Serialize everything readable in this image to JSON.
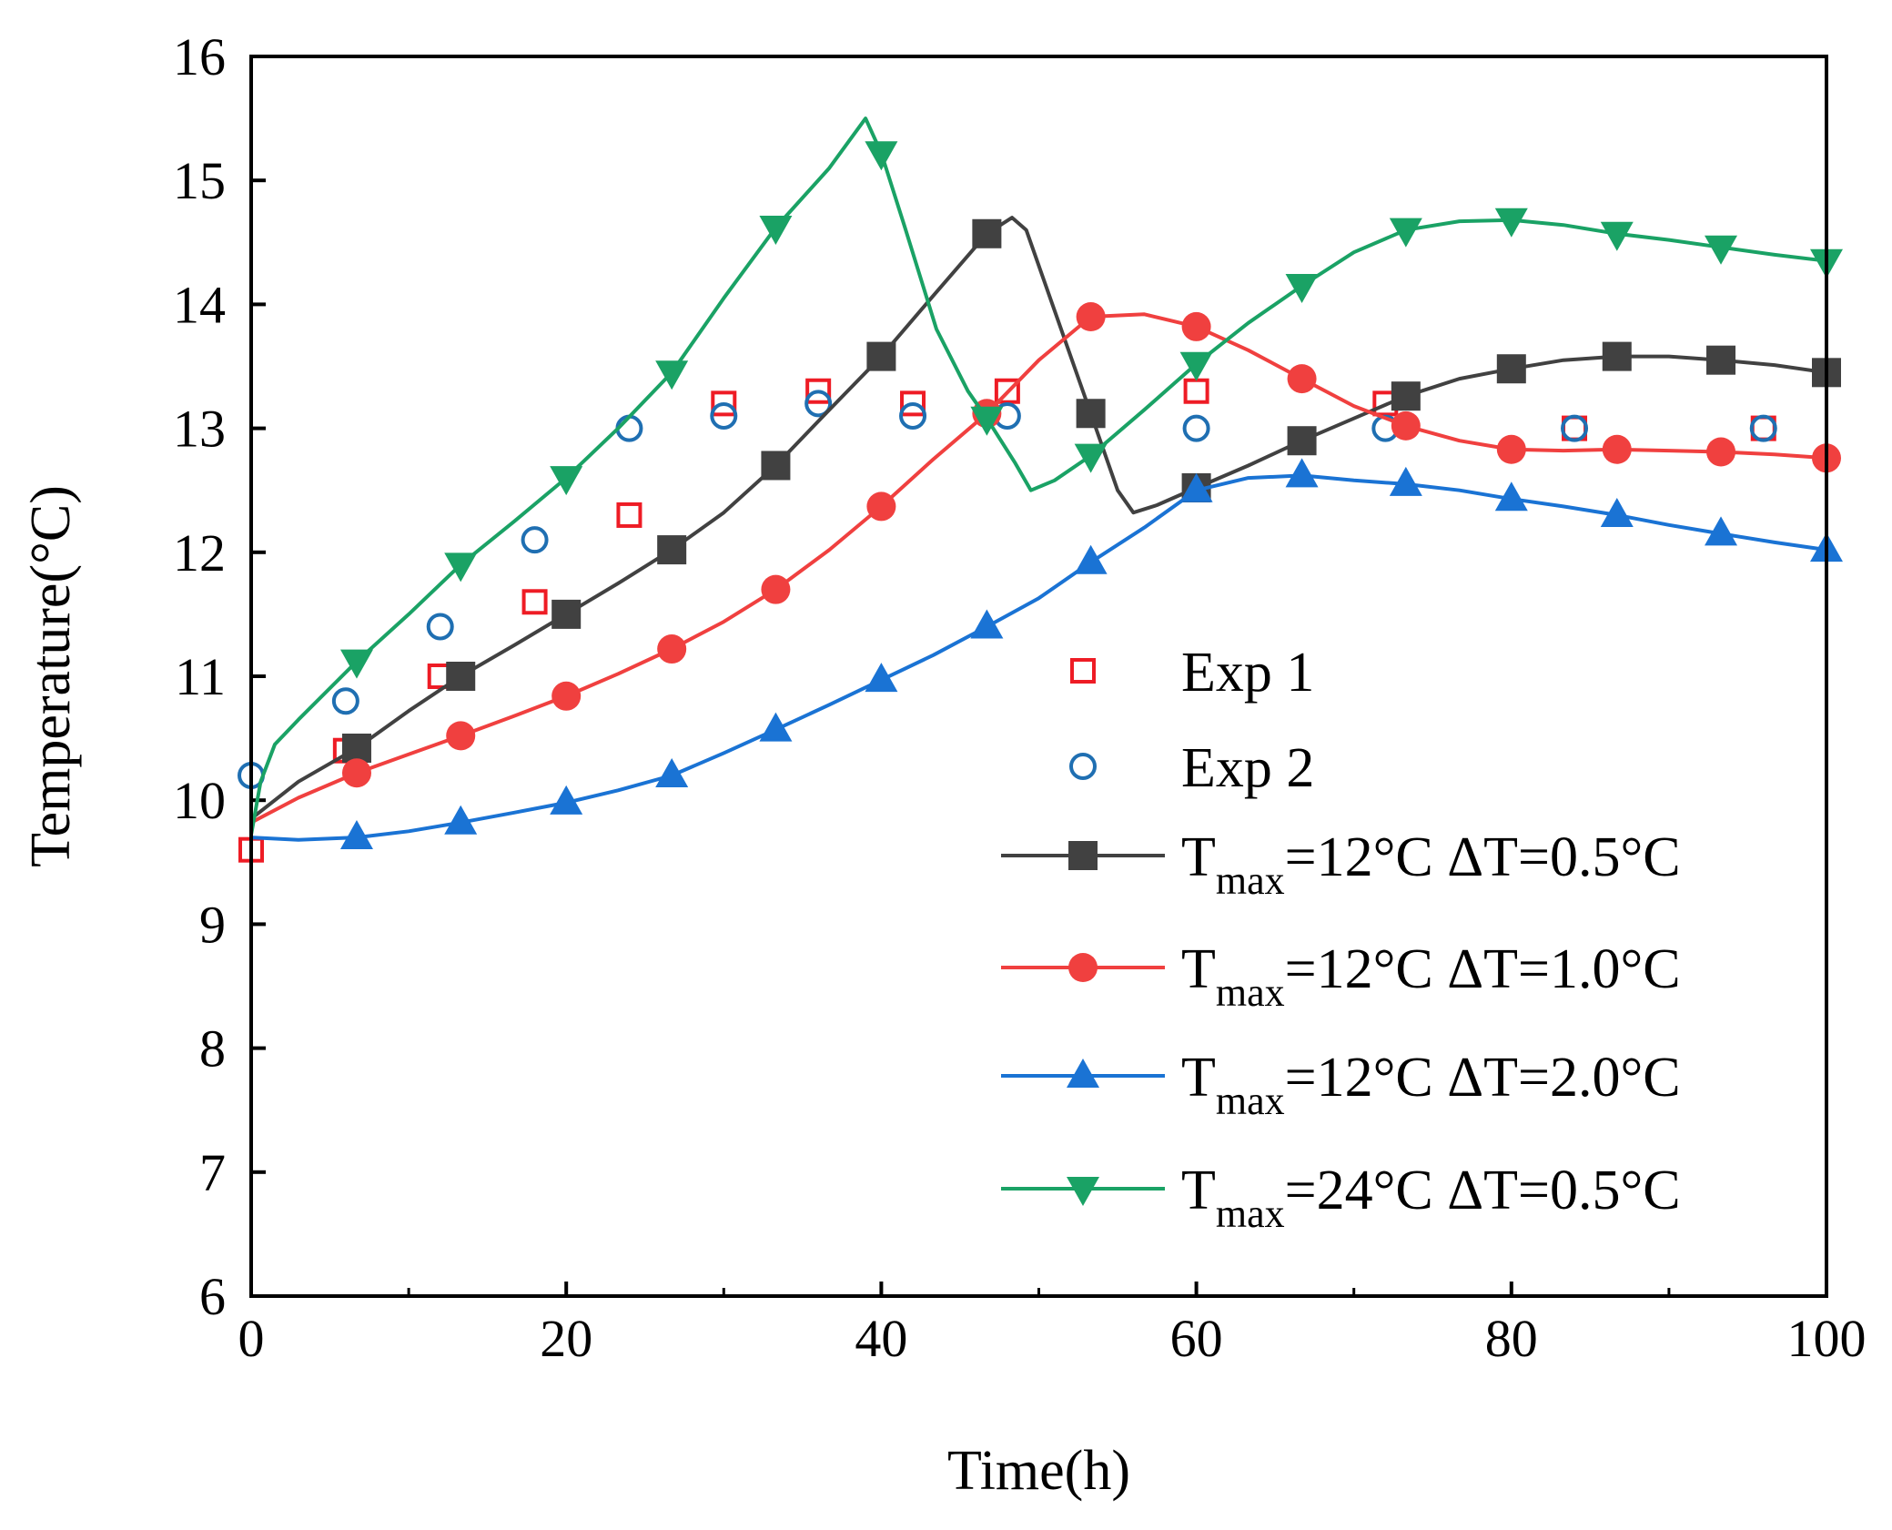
{
  "chart_data": {
    "type": "line",
    "title": "",
    "xlabel": "Time(h)",
    "ylabel": "Temperature(°C)",
    "xlim": [
      0,
      100
    ],
    "ylim": [
      6,
      16
    ],
    "xticks": [
      "0",
      "20",
      "40",
      "60",
      "80",
      "100"
    ],
    "yticks": [
      "6",
      "7",
      "8",
      "9",
      "10",
      "11",
      "12",
      "13",
      "14",
      "15",
      "16"
    ],
    "legend_position": "right-center",
    "series": [
      {
        "name": "Exp 1",
        "style": "markers",
        "marker": "square-open",
        "color": "#ee1c25",
        "points": [
          [
            0,
            9.6
          ],
          [
            6,
            10.4
          ],
          [
            12,
            11.0
          ],
          [
            18,
            11.6
          ],
          [
            24,
            12.3
          ],
          [
            30,
            13.2
          ],
          [
            36,
            13.3
          ],
          [
            42,
            13.2
          ],
          [
            48,
            13.3
          ],
          [
            60,
            13.3
          ],
          [
            72,
            13.2
          ],
          [
            84,
            13.0
          ],
          [
            96,
            13.0
          ]
        ]
      },
      {
        "name": "Exp 2",
        "style": "markers",
        "marker": "circle-open",
        "color": "#1f6fb2",
        "points": [
          [
            0,
            10.2
          ],
          [
            6,
            10.8
          ],
          [
            12,
            11.4
          ],
          [
            18,
            12.1
          ],
          [
            24,
            13.0
          ],
          [
            30,
            13.1
          ],
          [
            36,
            13.2
          ],
          [
            42,
            13.1
          ],
          [
            48,
            13.1
          ],
          [
            60,
            13.0
          ],
          [
            72,
            13.0
          ],
          [
            84,
            13.0
          ],
          [
            96,
            13.0
          ]
        ]
      },
      {
        "name": "T",
        "name_sub": "max",
        "name_rest": "=12°C ΔT=0.5°C",
        "style": "line-markers",
        "marker": "square-filled",
        "color": "#414141",
        "line": [
          [
            0,
            9.85
          ],
          [
            3,
            10.15
          ],
          [
            6.7,
            10.42
          ],
          [
            10,
            10.72
          ],
          [
            13.3,
            11.0
          ],
          [
            16.7,
            11.25
          ],
          [
            20,
            11.5
          ],
          [
            23.3,
            11.75
          ],
          [
            26.7,
            12.02
          ],
          [
            30,
            12.32
          ],
          [
            33.3,
            12.7
          ],
          [
            36.7,
            13.15
          ],
          [
            40,
            13.58
          ],
          [
            43.3,
            14.07
          ],
          [
            46.7,
            14.57
          ],
          [
            48.3,
            14.7
          ],
          [
            49.2,
            14.6
          ],
          [
            51,
            13.95
          ],
          [
            53.3,
            13.12
          ],
          [
            55,
            12.5
          ],
          [
            56,
            12.32
          ],
          [
            57.5,
            12.38
          ],
          [
            60,
            12.52
          ],
          [
            63.3,
            12.7
          ],
          [
            66.7,
            12.9
          ],
          [
            70,
            13.08
          ],
          [
            73.3,
            13.26
          ],
          [
            76.7,
            13.4
          ],
          [
            80,
            13.48
          ],
          [
            83.3,
            13.55
          ],
          [
            86.7,
            13.58
          ],
          [
            90,
            13.58
          ],
          [
            93.3,
            13.55
          ],
          [
            96.7,
            13.51
          ],
          [
            100,
            13.45
          ]
        ],
        "markers": [
          [
            6.7,
            10.42
          ],
          [
            13.3,
            11.0
          ],
          [
            20,
            11.5
          ],
          [
            26.7,
            12.02
          ],
          [
            33.3,
            12.7
          ],
          [
            40,
            13.58
          ],
          [
            46.7,
            14.57
          ],
          [
            53.3,
            13.12
          ],
          [
            60,
            12.52
          ],
          [
            66.7,
            12.9
          ],
          [
            73.3,
            13.26
          ],
          [
            80,
            13.48
          ],
          [
            86.7,
            13.58
          ],
          [
            93.3,
            13.55
          ],
          [
            100,
            13.45
          ]
        ]
      },
      {
        "name": "T",
        "name_sub": "max",
        "name_rest": "=12°C ΔT=1.0°C",
        "style": "line-markers",
        "marker": "circle-filled",
        "color": "#f0403f",
        "line": [
          [
            0,
            9.82
          ],
          [
            3,
            10.02
          ],
          [
            6.7,
            10.22
          ],
          [
            10,
            10.37
          ],
          [
            13.3,
            10.52
          ],
          [
            16.7,
            10.68
          ],
          [
            20,
            10.84
          ],
          [
            23.3,
            11.02
          ],
          [
            26.7,
            11.22
          ],
          [
            30,
            11.44
          ],
          [
            33.3,
            11.7
          ],
          [
            36.7,
            12.02
          ],
          [
            40,
            12.37
          ],
          [
            43.3,
            12.75
          ],
          [
            46.7,
            13.12
          ],
          [
            50,
            13.55
          ],
          [
            53.3,
            13.9
          ],
          [
            56.7,
            13.92
          ],
          [
            60,
            13.82
          ],
          [
            63.3,
            13.63
          ],
          [
            66.7,
            13.4
          ],
          [
            70,
            13.18
          ],
          [
            73.3,
            13.02
          ],
          [
            76.7,
            12.9
          ],
          [
            80,
            12.83
          ],
          [
            83.3,
            12.82
          ],
          [
            86.7,
            12.83
          ],
          [
            90,
            12.82
          ],
          [
            93.3,
            12.81
          ],
          [
            96.7,
            12.79
          ],
          [
            100,
            12.76
          ]
        ],
        "markers": [
          [
            6.7,
            10.22
          ],
          [
            13.3,
            10.52
          ],
          [
            20,
            10.84
          ],
          [
            26.7,
            11.22
          ],
          [
            33.3,
            11.7
          ],
          [
            40,
            12.37
          ],
          [
            46.7,
            13.12
          ],
          [
            53.3,
            13.9
          ],
          [
            60,
            13.82
          ],
          [
            66.7,
            13.4
          ],
          [
            73.3,
            13.02
          ],
          [
            80,
            12.83
          ],
          [
            86.7,
            12.83
          ],
          [
            93.3,
            12.81
          ],
          [
            100,
            12.76
          ]
        ]
      },
      {
        "name": "T",
        "name_sub": "max",
        "name_rest": "=12°C ΔT=2.0°C",
        "style": "line-markers",
        "marker": "triangle-up-filled",
        "color": "#1a73d4",
        "line": [
          [
            0,
            9.7
          ],
          [
            3,
            9.68
          ],
          [
            6.7,
            9.7
          ],
          [
            10,
            9.75
          ],
          [
            13.3,
            9.82
          ],
          [
            16.7,
            9.9
          ],
          [
            20,
            9.98
          ],
          [
            23.3,
            10.08
          ],
          [
            26.7,
            10.2
          ],
          [
            30,
            10.38
          ],
          [
            33.3,
            10.57
          ],
          [
            36.7,
            10.77
          ],
          [
            40,
            10.97
          ],
          [
            43.3,
            11.17
          ],
          [
            46.7,
            11.4
          ],
          [
            50,
            11.63
          ],
          [
            53.3,
            11.92
          ],
          [
            56.7,
            12.2
          ],
          [
            60,
            12.5
          ],
          [
            63.3,
            12.6
          ],
          [
            66.7,
            12.62
          ],
          [
            70,
            12.58
          ],
          [
            73.3,
            12.55
          ],
          [
            76.7,
            12.5
          ],
          [
            80,
            12.43
          ],
          [
            83.3,
            12.37
          ],
          [
            86.7,
            12.3
          ],
          [
            90,
            12.22
          ],
          [
            93.3,
            12.15
          ],
          [
            96.7,
            12.08
          ],
          [
            100,
            12.02
          ]
        ],
        "markers": [
          [
            6.7,
            9.7
          ],
          [
            13.3,
            9.82
          ],
          [
            20,
            9.98
          ],
          [
            26.7,
            10.2
          ],
          [
            33.3,
            10.57
          ],
          [
            40,
            10.97
          ],
          [
            46.7,
            11.4
          ],
          [
            53.3,
            11.92
          ],
          [
            60,
            12.5
          ],
          [
            66.7,
            12.62
          ],
          [
            73.3,
            12.55
          ],
          [
            80,
            12.43
          ],
          [
            86.7,
            12.3
          ],
          [
            93.3,
            12.15
          ],
          [
            100,
            12.02
          ]
        ]
      },
      {
        "name": "T",
        "name_sub": "max",
        "name_rest": "=24°C ΔT=0.5°C",
        "style": "line-markers",
        "marker": "triangle-down-filled",
        "color": "#1aa265",
        "line": [
          [
            0,
            9.72
          ],
          [
            0.6,
            10.15
          ],
          [
            1.5,
            10.45
          ],
          [
            3,
            10.65
          ],
          [
            6.7,
            11.12
          ],
          [
            10,
            11.5
          ],
          [
            13.3,
            11.9
          ],
          [
            16.7,
            12.25
          ],
          [
            20,
            12.6
          ],
          [
            23.3,
            13.0
          ],
          [
            26.7,
            13.45
          ],
          [
            30,
            14.05
          ],
          [
            33.3,
            14.62
          ],
          [
            36.7,
            15.1
          ],
          [
            39,
            15.5
          ],
          [
            40,
            15.22
          ],
          [
            41.5,
            14.62
          ],
          [
            43.5,
            13.8
          ],
          [
            45.5,
            13.3
          ],
          [
            46.7,
            13.08
          ],
          [
            48.5,
            12.72
          ],
          [
            49.5,
            12.5
          ],
          [
            51,
            12.58
          ],
          [
            53.3,
            12.78
          ],
          [
            56.7,
            13.15
          ],
          [
            60,
            13.52
          ],
          [
            63.3,
            13.85
          ],
          [
            66.7,
            14.15
          ],
          [
            70,
            14.42
          ],
          [
            73.3,
            14.6
          ],
          [
            76.7,
            14.67
          ],
          [
            80,
            14.68
          ],
          [
            83.3,
            14.64
          ],
          [
            86.7,
            14.57
          ],
          [
            90,
            14.52
          ],
          [
            93.3,
            14.46
          ],
          [
            96.7,
            14.4
          ],
          [
            100,
            14.35
          ]
        ],
        "markers": [
          [
            6.7,
            11.12
          ],
          [
            13.3,
            11.9
          ],
          [
            20,
            12.6
          ],
          [
            26.7,
            13.45
          ],
          [
            33.3,
            14.62
          ],
          [
            40,
            15.22
          ],
          [
            46.7,
            13.08
          ],
          [
            53.3,
            12.78
          ],
          [
            60,
            13.52
          ],
          [
            66.7,
            14.15
          ],
          [
            73.3,
            14.6
          ],
          [
            80,
            14.68
          ],
          [
            86.7,
            14.57
          ],
          [
            93.3,
            14.46
          ],
          [
            100,
            14.35
          ]
        ]
      }
    ]
  }
}
